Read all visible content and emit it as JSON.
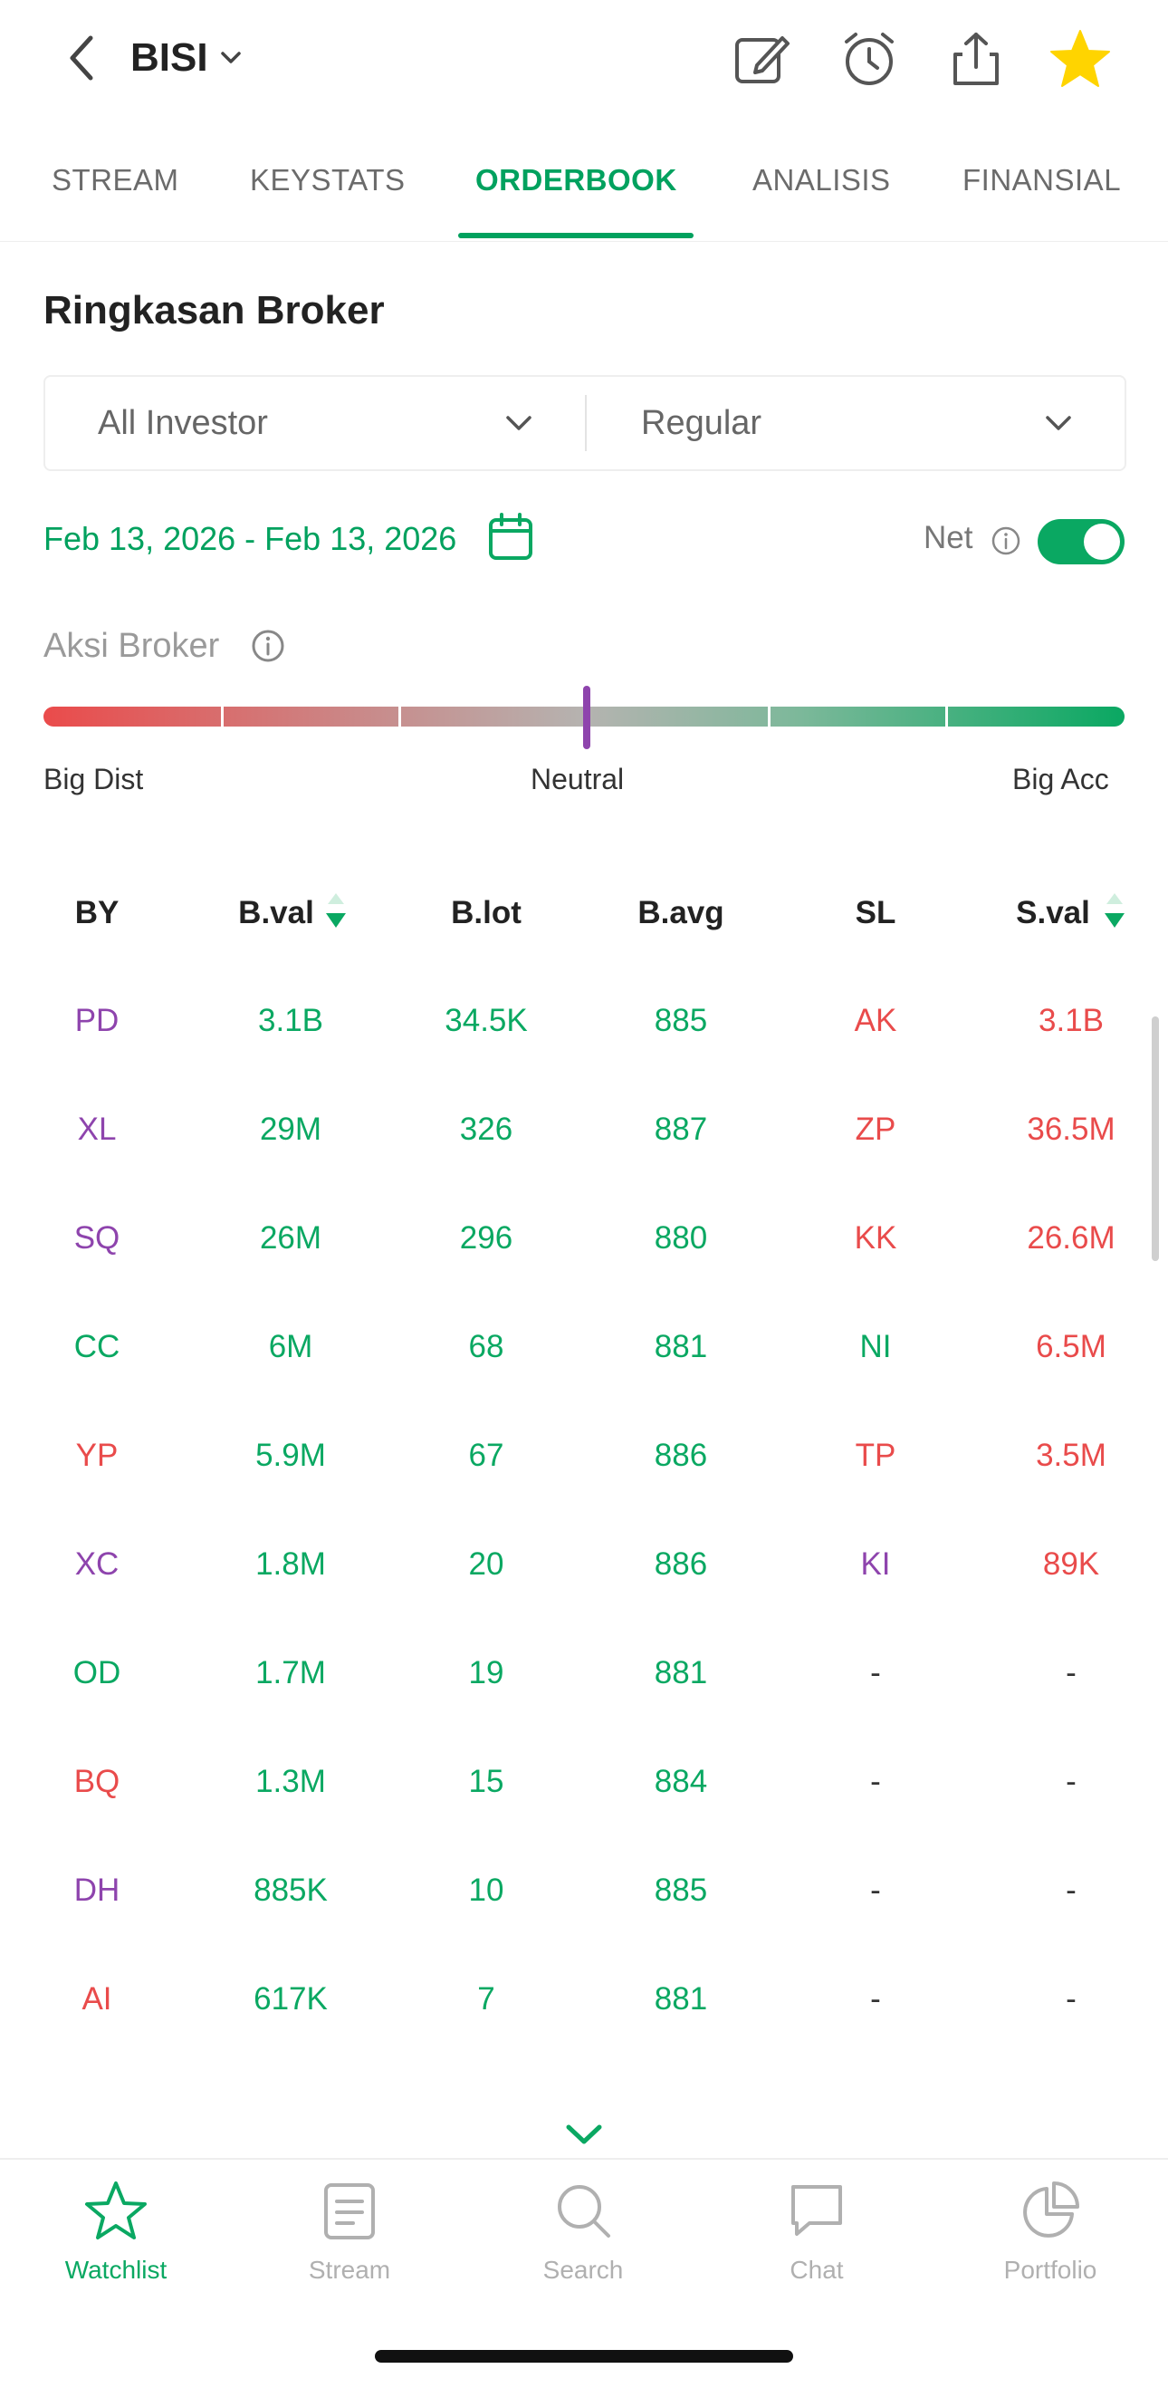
{
  "header": {
    "ticker": "BISI"
  },
  "tabs": [
    "STREAM",
    "KEYSTATS",
    "ORDERBOOK",
    "ANALISIS",
    "FINANSIAL"
  ],
  "active_tab": "ORDERBOOK",
  "section": {
    "title": "Ringkasan Broker",
    "investor_filter": "All Investor",
    "market_filter": "Regular",
    "date_range": "Feb 13, 2026 - Feb 13, 2026",
    "net_label": "Net",
    "net_enabled": true
  },
  "aksi": {
    "label": "Aksi Broker",
    "left_label": "Big Dist",
    "center_label": "Neutral",
    "right_label": "Big Acc",
    "level": 0.5
  },
  "table": {
    "headers": [
      "BY",
      "B.val",
      "B.lot",
      "B.avg",
      "SL",
      "S.val"
    ],
    "rows": [
      {
        "by": "PD",
        "b_val": "3.1B",
        "b_lot": "34.5K",
        "b_avg": "885",
        "sl": "AK",
        "s_val": "3.1B"
      },
      {
        "by": "XL",
        "b_val": "29M",
        "b_lot": "326",
        "b_avg": "887",
        "sl": "ZP",
        "s_val": "36.5M"
      },
      {
        "by": "SQ",
        "b_val": "26M",
        "b_lot": "296",
        "b_avg": "880",
        "sl": "KK",
        "s_val": "26.6M"
      },
      {
        "by": "CC",
        "b_val": "6M",
        "b_lot": "68",
        "b_avg": "881",
        "sl": "NI",
        "s_val": "6.5M"
      },
      {
        "by": "YP",
        "b_val": "5.9M",
        "b_lot": "67",
        "b_avg": "886",
        "sl": "TP",
        "s_val": "3.5M"
      },
      {
        "by": "XC",
        "b_val": "1.8M",
        "b_lot": "20",
        "b_avg": "886",
        "sl": "KI",
        "s_val": "89K"
      },
      {
        "by": "OD",
        "b_val": "1.7M",
        "b_lot": "19",
        "b_avg": "881",
        "sl": "-",
        "s_val": "-"
      },
      {
        "by": "BQ",
        "b_val": "1.3M",
        "b_lot": "15",
        "b_avg": "884",
        "sl": "-",
        "s_val": "-"
      },
      {
        "by": "DH",
        "b_val": "885K",
        "b_lot": "10",
        "b_avg": "885",
        "sl": "-",
        "s_val": "-"
      },
      {
        "by": "AI",
        "b_val": "617K",
        "b_lot": "7",
        "b_avg": "881",
        "sl": "-",
        "s_val": "-"
      }
    ]
  },
  "bottom_nav": [
    "Watchlist",
    "Stream",
    "Search",
    "Chat",
    "Portfolio"
  ],
  "colors": {
    "accent_green": "#0aa862",
    "sell_red": "#e94b4b",
    "foreign_purple": "#8e44ad",
    "favorite_yellow": "#ffd400"
  }
}
